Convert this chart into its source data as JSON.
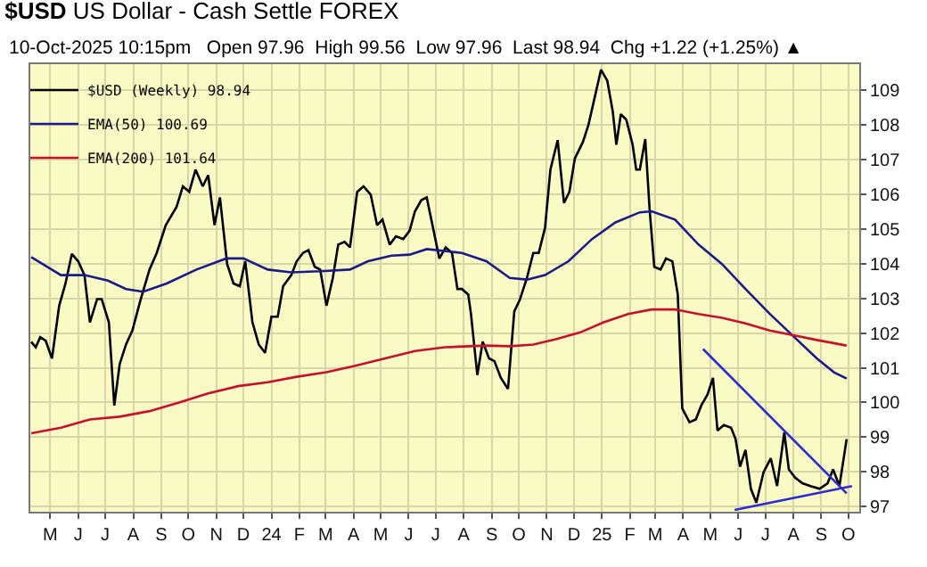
{
  "chart_data": {
    "type": "line",
    "title": "$USD US Dollar - Cash Settle FOREX",
    "subtitle": "10-Oct-2025 10:15pm   Open 97.96  High 99.56  Low 97.96  Last 98.94  Chg +1.22 (+1.25%) ▲",
    "xlim": [
      "2023-04-09",
      "2025-10-13"
    ],
    "xticks": [
      {
        "value": "2023-05-01",
        "label": "M"
      },
      {
        "value": "2023-06-01",
        "label": "J"
      },
      {
        "value": "2023-07-01",
        "label": "J"
      },
      {
        "value": "2023-08-01",
        "label": "A"
      },
      {
        "value": "2023-09-01",
        "label": "S"
      },
      {
        "value": "2023-10-01",
        "label": "O"
      },
      {
        "value": "2023-11-01",
        "label": "N"
      },
      {
        "value": "2023-12-01",
        "label": "D"
      },
      {
        "value": "2024-01-01",
        "label": "24"
      },
      {
        "value": "2024-02-01",
        "label": "F"
      },
      {
        "value": "2024-03-01",
        "label": "M"
      },
      {
        "value": "2024-04-01",
        "label": "A"
      },
      {
        "value": "2024-05-01",
        "label": "M"
      },
      {
        "value": "2024-06-01",
        "label": "J"
      },
      {
        "value": "2024-07-01",
        "label": "J"
      },
      {
        "value": "2024-08-01",
        "label": "A"
      },
      {
        "value": "2024-09-01",
        "label": "S"
      },
      {
        "value": "2024-10-01",
        "label": "O"
      },
      {
        "value": "2024-11-01",
        "label": "N"
      },
      {
        "value": "2024-12-01",
        "label": "D"
      },
      {
        "value": "2025-01-01",
        "label": "25"
      },
      {
        "value": "2025-02-01",
        "label": "F"
      },
      {
        "value": "2025-03-01",
        "label": "M"
      },
      {
        "value": "2025-04-01",
        "label": "A"
      },
      {
        "value": "2025-05-01",
        "label": "M"
      },
      {
        "value": "2025-06-01",
        "label": "J"
      },
      {
        "value": "2025-07-01",
        "label": "J"
      },
      {
        "value": "2025-08-01",
        "label": "A"
      },
      {
        "value": "2025-09-01",
        "label": "S"
      },
      {
        "value": "2025-10-01",
        "label": "O"
      }
    ],
    "ylim": [
      96.85,
      109.75
    ],
    "yticks": [
      97,
      98,
      99,
      100,
      101,
      102,
      103,
      104,
      105,
      106,
      107,
      108,
      109
    ],
    "grid": true,
    "legend": "top left",
    "marker": "none",
    "line_style": "solid",
    "series": [
      {
        "name": "$USD (Weekly) 98.94",
        "color": "#000000",
        "x": [
          "2023-04-10",
          "2023-04-15",
          "2023-04-20",
          "2023-04-26",
          "2023-05-03",
          "2023-05-11",
          "2023-05-18",
          "2023-05-25",
          "2023-06-01",
          "2023-06-08",
          "2023-06-14",
          "2023-06-22",
          "2023-06-27",
          "2023-07-05",
          "2023-07-11",
          "2023-07-17",
          "2023-07-24",
          "2023-07-31",
          "2023-08-09",
          "2023-08-19",
          "2023-08-27",
          "2023-09-06",
          "2023-09-18",
          "2023-09-25",
          "2023-10-02",
          "2023-10-09",
          "2023-10-17",
          "2023-10-23",
          "2023-10-30",
          "2023-11-05",
          "2023-11-13",
          "2023-11-20",
          "2023-11-27",
          "2023-12-03",
          "2023-12-11",
          "2023-12-18",
          "2023-12-25",
          "2024-01-01",
          "2024-01-08",
          "2024-01-14",
          "2024-01-23",
          "2024-01-29",
          "2024-02-05",
          "2024-02-11",
          "2024-02-18",
          "2024-02-24",
          "2024-03-02",
          "2024-03-09",
          "2024-03-15",
          "2024-03-22",
          "2024-03-28",
          "2024-04-05",
          "2024-04-12",
          "2024-04-20",
          "2024-04-27",
          "2024-05-03",
          "2024-05-11",
          "2024-05-18",
          "2024-05-26",
          "2024-06-02",
          "2024-06-08",
          "2024-06-15",
          "2024-06-21",
          "2024-06-28",
          "2024-07-05",
          "2024-07-12",
          "2024-07-19",
          "2024-07-25",
          "2024-07-30",
          "2024-08-06",
          "2024-08-09",
          "2024-08-16",
          "2024-08-22",
          "2024-08-29",
          "2024-09-04",
          "2024-09-11",
          "2024-09-19",
          "2024-09-26",
          "2024-10-02",
          "2024-10-10",
          "2024-10-17",
          "2024-10-23",
          "2024-10-30",
          "2024-11-05",
          "2024-11-13",
          "2024-11-20",
          "2024-11-26",
          "2024-12-02",
          "2024-12-11",
          "2024-12-17",
          "2024-12-24",
          "2024-12-31",
          "2025-01-07",
          "2025-01-13",
          "2025-01-17",
          "2025-01-22",
          "2025-01-28",
          "2025-02-04",
          "2025-02-08",
          "2025-02-12",
          "2025-02-18",
          "2025-02-23",
          "2025-02-28",
          "2025-03-07",
          "2025-03-13",
          "2025-03-20",
          "2025-03-26",
          "2025-03-31",
          "2025-04-08",
          "2025-04-15",
          "2025-04-21",
          "2025-04-28",
          "2025-05-04",
          "2025-05-09",
          "2025-05-16",
          "2025-05-24",
          "2025-05-29",
          "2025-06-03",
          "2025-06-09",
          "2025-06-15",
          "2025-06-21",
          "2025-06-29",
          "2025-07-07",
          "2025-07-14",
          "2025-07-22",
          "2025-07-27",
          "2025-08-03",
          "2025-08-11",
          "2025-08-20",
          "2025-08-30",
          "2025-09-08",
          "2025-09-14",
          "2025-09-21",
          "2025-09-29"
        ],
        "values": [
          101.75,
          101.59,
          101.88,
          101.78,
          101.27,
          102.79,
          103.43,
          104.28,
          104.07,
          103.67,
          102.31,
          102.98,
          102.98,
          102.31,
          99.91,
          101.11,
          101.67,
          102.07,
          102.95,
          103.83,
          104.31,
          105.11,
          105.64,
          106.23,
          106.07,
          106.71,
          106.23,
          106.55,
          105.11,
          105.91,
          103.99,
          103.43,
          103.35,
          104.07,
          102.31,
          101.67,
          101.43,
          102.47,
          102.47,
          103.35,
          103.67,
          104.07,
          104.31,
          104.39,
          103.91,
          103.83,
          102.79,
          103.59,
          104.55,
          104.63,
          104.47,
          106.07,
          106.23,
          105.99,
          105.11,
          105.27,
          104.55,
          104.79,
          104.71,
          104.95,
          105.51,
          105.83,
          105.91,
          105.03,
          104.15,
          104.47,
          104.31,
          103.27,
          103.27,
          103.11,
          102.55,
          100.79,
          101.75,
          101.27,
          101.19,
          100.71,
          100.39,
          102.63,
          102.95,
          103.59,
          104.31,
          104.31,
          105.03,
          106.71,
          107.56,
          105.75,
          106.07,
          107.03,
          107.51,
          107.99,
          108.79,
          109.59,
          109.27,
          108.39,
          107.43,
          108.31,
          108.15,
          107.43,
          106.71,
          106.71,
          107.59,
          105.51,
          103.91,
          103.83,
          104.15,
          104.07,
          103.11,
          99.83,
          99.43,
          99.51,
          99.91,
          100.23,
          100.71,
          99.19,
          99.35,
          99.27,
          98.95,
          98.15,
          98.63,
          97.51,
          97.11,
          97.99,
          98.39,
          97.59,
          99.14,
          98.07,
          97.83,
          97.67,
          97.59,
          97.51,
          97.67,
          98.07,
          97.59,
          98.94
        ]
      },
      {
        "name": "EMA(50) 100.69",
        "color": "#1a1a8c",
        "x": [
          "2023-04-10",
          "2023-05-13",
          "2023-06-08",
          "2023-07-04",
          "2023-07-24",
          "2023-08-12",
          "2023-09-07",
          "2023-10-10",
          "2023-11-12",
          "2023-12-01",
          "2023-12-28",
          "2024-01-23",
          "2024-02-24",
          "2024-03-28",
          "2024-04-17",
          "2024-05-13",
          "2024-06-02",
          "2024-06-21",
          "2024-07-30",
          "2024-08-26",
          "2024-09-21",
          "2024-10-10",
          "2024-10-30",
          "2024-11-25",
          "2024-12-21",
          "2025-01-16",
          "2025-02-12",
          "2025-02-25",
          "2025-03-23",
          "2025-04-18",
          "2025-05-14",
          "2025-06-09",
          "2025-07-06",
          "2025-08-01",
          "2025-08-27",
          "2025-09-15",
          "2025-09-29"
        ],
        "values": [
          104.19,
          103.67,
          103.67,
          103.51,
          103.27,
          103.19,
          103.43,
          103.83,
          104.15,
          104.15,
          103.83,
          103.75,
          103.78,
          103.83,
          104.07,
          104.23,
          104.26,
          104.42,
          104.31,
          104.07,
          103.59,
          103.54,
          103.67,
          104.07,
          104.71,
          105.19,
          105.48,
          105.51,
          105.27,
          104.55,
          103.99,
          103.27,
          102.55,
          101.91,
          101.27,
          100.87,
          100.69
        ]
      },
      {
        "name": "EMA(200) 101.64",
        "color": "#c8102e",
        "x": [
          "2023-04-10",
          "2023-05-13",
          "2023-06-14",
          "2023-07-17",
          "2023-08-19",
          "2023-09-20",
          "2023-10-23",
          "2023-11-25",
          "2023-12-28",
          "2024-01-29",
          "2024-03-02",
          "2024-04-03",
          "2024-05-06",
          "2024-06-08",
          "2024-07-11",
          "2024-08-26",
          "2024-09-21",
          "2024-10-17",
          "2024-11-12",
          "2024-12-08",
          "2025-01-03",
          "2025-01-30",
          "2025-02-25",
          "2025-03-23",
          "2025-04-18",
          "2025-05-14",
          "2025-06-09",
          "2025-07-06",
          "2025-08-01",
          "2025-08-27",
          "2025-09-29"
        ],
        "values": [
          99.11,
          99.27,
          99.51,
          99.59,
          99.75,
          99.99,
          100.26,
          100.47,
          100.58,
          100.74,
          100.87,
          101.06,
          101.27,
          101.48,
          101.59,
          101.64,
          101.62,
          101.67,
          101.83,
          102.02,
          102.31,
          102.55,
          102.68,
          102.68,
          102.55,
          102.44,
          102.28,
          102.07,
          101.94,
          101.8,
          101.64
        ]
      },
      {
        "color": "#2b2bd0",
        "x": [
          "2025-04-23",
          "2025-09-29"
        ],
        "values": [
          101.54,
          97.38
        ]
      },
      {
        "color": "#2b2bd0",
        "x": [
          "2025-05-28",
          "2025-10-05"
        ],
        "values": [
          96.9,
          97.59
        ]
      }
    ]
  }
}
